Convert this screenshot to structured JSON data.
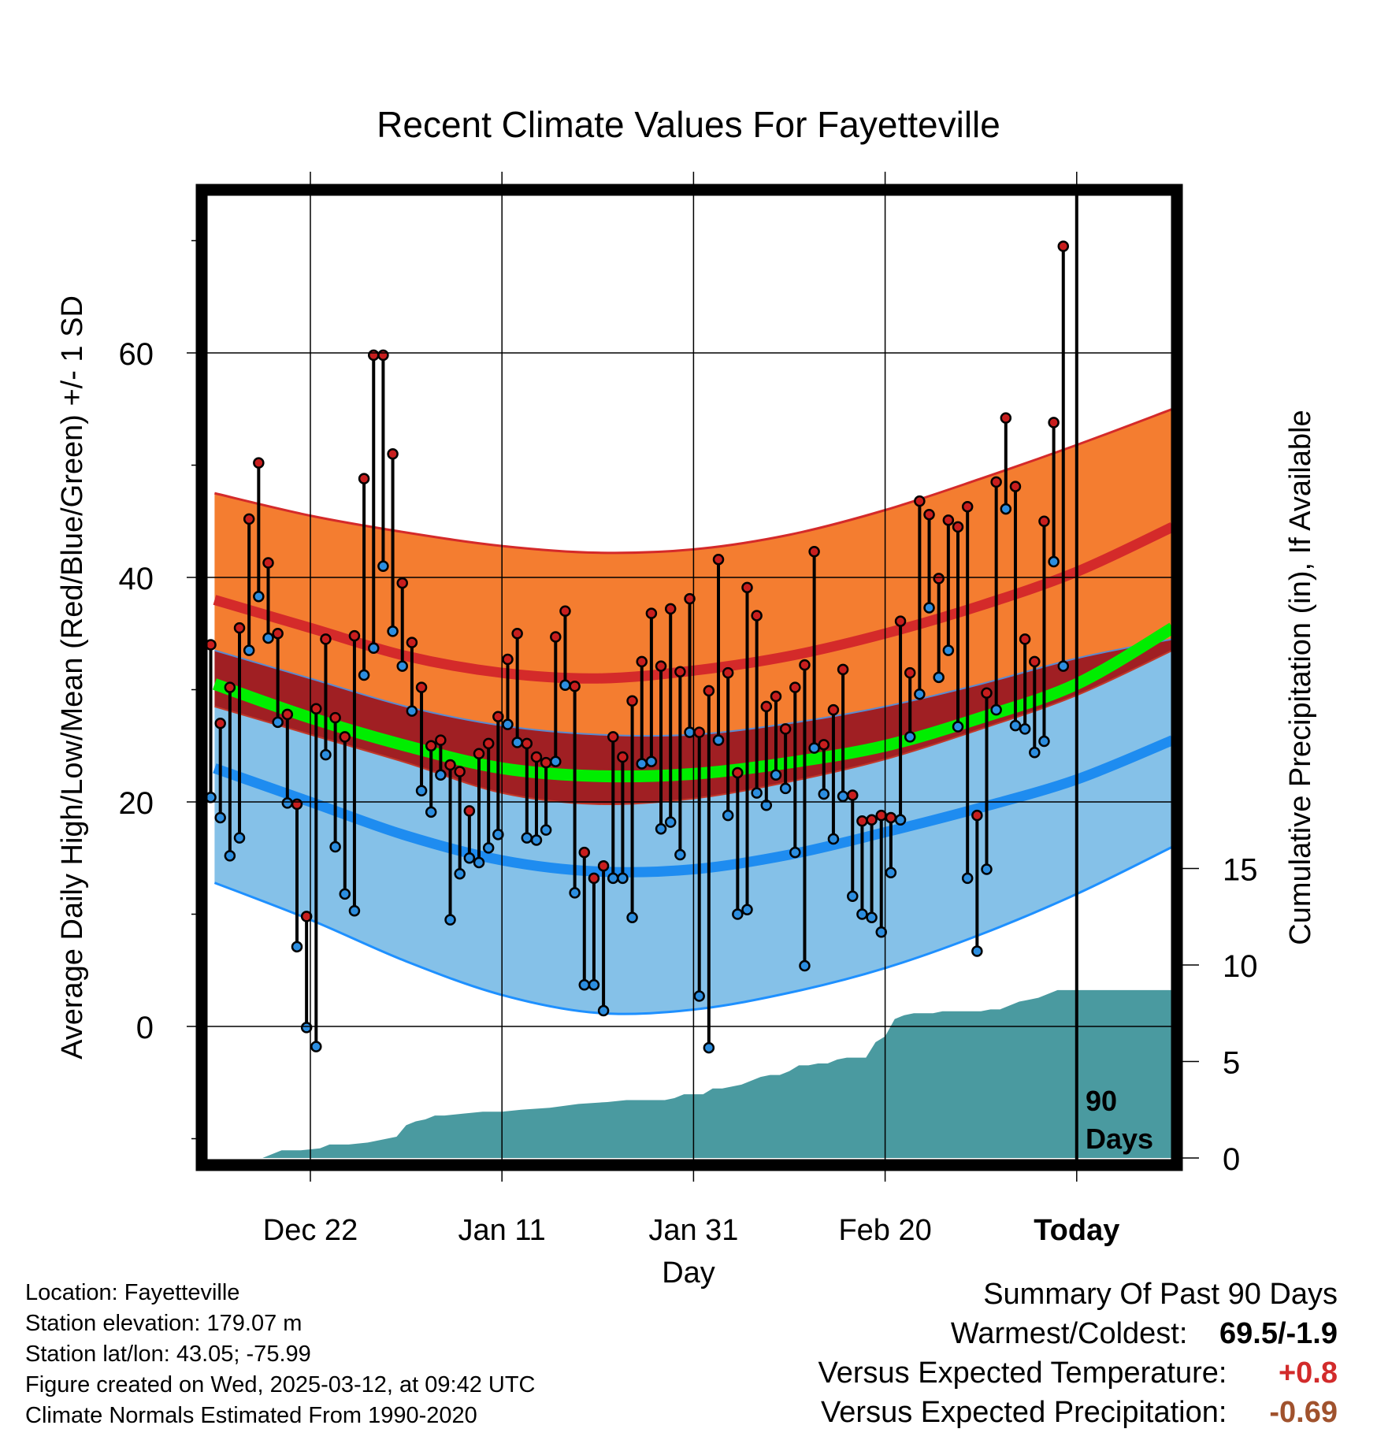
{
  "chart_data": {
    "type": "line",
    "title": "Recent Climate Values For Fayetteville",
    "xlabel": "Day",
    "ylabel": "Average Daily High/Low/Mean (Red/Blue/Green) +/- 1 SD",
    "y2label": "Cumulative Precipitation (in), If Available",
    "ylim": [
      -11.5,
      74
    ],
    "y2lim": [
      0,
      26
    ],
    "x_ticks": [
      {
        "day": 0,
        "label": "Dec 22"
      },
      {
        "day": 20,
        "label": "Jan 11"
      },
      {
        "day": 40,
        "label": "Jan 31"
      },
      {
        "day": 60,
        "label": "Feb 20"
      },
      {
        "day": 80,
        "label": "Today"
      }
    ],
    "y_ticks": [
      0,
      20,
      40,
      60
    ],
    "y2_ticks": [
      0,
      5,
      10,
      15
    ],
    "grid": true,
    "today_marker": {
      "day": 80,
      "label_line1": "90",
      "label_line2": "Days"
    },
    "normals": {
      "days": [
        -10,
        0,
        10,
        20,
        30,
        40,
        50,
        60,
        70,
        80,
        90
      ],
      "high_mean": [
        38,
        35.5,
        33,
        31.5,
        31,
        31.7,
        33,
        35,
        37.5,
        40.5,
        44.5
      ],
      "high_upper": [
        47.5,
        45.5,
        44,
        42.8,
        42.2,
        42.5,
        43.8,
        46,
        48.8,
        51.8,
        55
      ],
      "high_lower": [
        33.5,
        31,
        28.5,
        26.8,
        26,
        26,
        27,
        28.5,
        30.5,
        32.8,
        34.5
      ],
      "mean": [
        30.5,
        27.5,
        25,
        23,
        22.3,
        22.5,
        23.5,
        25,
        27.5,
        30.5,
        35.5
      ],
      "low_mean": [
        23,
        20,
        17,
        14.8,
        13.8,
        14,
        15.3,
        17.3,
        19.5,
        22,
        25.5
      ],
      "low_upper": [
        28.5,
        26,
        23.5,
        20.8,
        19.8,
        20.3,
        21.8,
        23.8,
        26.5,
        29.5,
        33.5
      ],
      "low_lower": [
        12.8,
        9.5,
        5.8,
        2.8,
        1.2,
        1.5,
        3,
        5.2,
        8.2,
        11.8,
        16
      ]
    },
    "series": [
      {
        "name": "High",
        "color": "#c81e1e",
        "values": [
          34,
          27,
          30.2,
          35.5,
          45.2,
          50.2,
          41.3,
          35,
          27.8,
          19.8,
          9.8,
          28.3,
          34.5,
          27.5,
          25.8,
          34.8,
          48.8,
          59.8,
          59.8,
          51,
          39.5,
          34.2,
          30.2,
          25,
          25.5,
          23.3,
          22.7,
          19.2,
          24.3,
          25.2,
          27.6,
          32.7,
          35,
          25.2,
          24,
          23.5,
          34.7,
          37,
          30.3,
          15.5,
          13.2,
          14.3,
          25.8,
          24,
          29,
          32.5,
          36.8,
          32.1,
          37.2,
          31.6,
          38.1,
          26.2,
          29.9,
          41.6,
          31.5,
          22.6,
          39.1,
          36.6,
          28.5,
          29.4,
          26.5,
          30.2,
          32.2,
          42.3,
          25.1,
          28.2,
          31.8,
          20.6,
          18.3,
          18.4,
          18.8,
          18.6,
          36.1,
          31.5,
          46.8,
          45.6,
          39.9,
          45.1,
          44.5,
          46.3,
          18.8,
          29.7,
          48.5,
          54.2,
          48.1,
          34.5,
          32.5,
          45,
          53.8,
          69.5
        ]
      },
      {
        "name": "Low",
        "color": "#2c8ee0",
        "values": [
          20.4,
          18.6,
          15.2,
          16.8,
          33.5,
          38.3,
          34.6,
          27.1,
          19.9,
          7.1,
          -0.1,
          -1.8,
          24.2,
          16,
          11.8,
          10.3,
          31.3,
          33.7,
          41,
          35.2,
          32.1,
          28.1,
          21,
          19.1,
          22.4,
          9.5,
          13.6,
          15,
          14.6,
          15.9,
          17.1,
          26.9,
          25.3,
          16.8,
          16.6,
          17.5,
          23.6,
          30.4,
          11.9,
          3.7,
          3.7,
          1.4,
          13.2,
          13.2,
          9.7,
          23.4,
          23.6,
          17.6,
          18.2,
          15.3,
          26.2,
          2.7,
          -1.9,
          25.5,
          18.8,
          10,
          10.4,
          20.8,
          19.7,
          22.4,
          21.2,
          15.5,
          5.4,
          24.8,
          20.7,
          16.7,
          20.5,
          11.6,
          10,
          9.7,
          8.4,
          13.7,
          18.4,
          25.8,
          29.6,
          37.3,
          31.1,
          33.5,
          26.7,
          13.2,
          6.7,
          14,
          28.2,
          46.1,
          26.8,
          26.5,
          24.4,
          25.4,
          41.4,
          32.1
        ]
      },
      {
        "name": "Precipitation",
        "color": "#4a9aa0",
        "values_days": [
          -10,
          -5,
          -4,
          -3,
          -1,
          1,
          2,
          4,
          6,
          9,
          10,
          11,
          12,
          13,
          14,
          16,
          18,
          20,
          22,
          25,
          28,
          31,
          33,
          34,
          37,
          38,
          39,
          41,
          42,
          43,
          45,
          47,
          48,
          49,
          50,
          51,
          52,
          53,
          54,
          55,
          56,
          57,
          58,
          59,
          60,
          61,
          62,
          63,
          64,
          65,
          66,
          67,
          68,
          69,
          70,
          71,
          72,
          74,
          75,
          76,
          77,
          78,
          79,
          80,
          81,
          90
        ],
        "values": [
          0,
          0,
          0.2,
          0.4,
          0.4,
          0.5,
          0.7,
          0.7,
          0.8,
          1.1,
          1.7,
          1.9,
          2.0,
          2.2,
          2.2,
          2.3,
          2.4,
          2.4,
          2.5,
          2.6,
          2.8,
          2.9,
          3.0,
          3.0,
          3.0,
          3.1,
          3.3,
          3.3,
          3.6,
          3.6,
          3.8,
          4.2,
          4.3,
          4.3,
          4.5,
          4.8,
          4.8,
          4.9,
          4.9,
          5.1,
          5.2,
          5.2,
          5.2,
          6.0,
          6.3,
          7.2,
          7.4,
          7.5,
          7.5,
          7.5,
          7.6,
          7.6,
          7.6,
          7.6,
          7.6,
          7.7,
          7.7,
          8.1,
          8.2,
          8.3,
          8.5,
          8.7,
          8.7,
          8.7,
          8.7,
          8.7
        ]
      }
    ]
  },
  "footer": {
    "location": "Location: Fayetteville",
    "elevation": "Station elevation: 179.07 m",
    "latlon": "Station lat/lon: 43.05; -75.99",
    "created": "Figure created on Wed, 2025-03-12, at 09:42 UTC",
    "normals": "Climate Normals Estimated From 1990-2020"
  },
  "summary": {
    "heading": "Summary Of Past 90 Days",
    "warmest_label": "Warmest/Coldest:",
    "warmest_value": "69.5/-1.9",
    "temp_label": "Versus Expected Temperature:",
    "temp_value": "+0.8",
    "temp_color": "#d22b2b",
    "precip_label": "Versus Expected Precipitation:",
    "precip_value": "-0.69",
    "precip_color": "#a0522d"
  }
}
